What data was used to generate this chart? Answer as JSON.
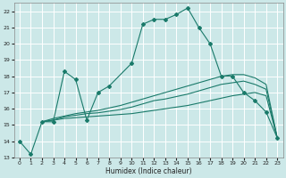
{
  "xlabel": "Humidex (Indice chaleur)",
  "bg_color": "#cce8e8",
  "grid_color": "#ffffff",
  "line_color": "#1a7a6a",
  "xlim": [
    -0.5,
    23.5
  ],
  "ylim": [
    13,
    22.5
  ],
  "xticks": [
    0,
    1,
    2,
    3,
    4,
    5,
    6,
    7,
    8,
    9,
    10,
    11,
    12,
    13,
    14,
    15,
    16,
    17,
    18,
    19,
    20,
    21,
    22,
    23
  ],
  "yticks": [
    13,
    14,
    15,
    16,
    17,
    18,
    19,
    20,
    21,
    22
  ],
  "line1_x": [
    0,
    1,
    2,
    3,
    4,
    5,
    6,
    7,
    8,
    10,
    11,
    12,
    13,
    14,
    15,
    16,
    17,
    18,
    19,
    20,
    21,
    22,
    23
  ],
  "line1_y": [
    14.0,
    13.2,
    15.2,
    15.2,
    18.3,
    17.8,
    15.3,
    17.0,
    17.4,
    18.8,
    21.2,
    21.5,
    21.5,
    21.8,
    22.2,
    21.0,
    20.0,
    18.0,
    18.0,
    17.0,
    16.5,
    15.8,
    14.2
  ],
  "line2_x": [
    2,
    3,
    4,
    5,
    6,
    7,
    8,
    9,
    10,
    11,
    12,
    13,
    14,
    15,
    16,
    17,
    18,
    19,
    20,
    21,
    22,
    23
  ],
  "line2_y": [
    15.2,
    15.3,
    15.4,
    15.45,
    15.5,
    15.55,
    15.6,
    15.65,
    15.7,
    15.8,
    15.9,
    16.0,
    16.1,
    16.2,
    16.35,
    16.5,
    16.65,
    16.8,
    16.9,
    17.0,
    16.8,
    14.2
  ],
  "line3_x": [
    2,
    3,
    4,
    5,
    6,
    7,
    8,
    9,
    10,
    11,
    12,
    13,
    14,
    15,
    16,
    17,
    18,
    19,
    20,
    21,
    22,
    23
  ],
  "line3_y": [
    15.2,
    15.3,
    15.5,
    15.6,
    15.7,
    15.75,
    15.85,
    15.95,
    16.1,
    16.3,
    16.5,
    16.6,
    16.75,
    16.9,
    17.1,
    17.3,
    17.5,
    17.6,
    17.7,
    17.5,
    17.2,
    14.2
  ],
  "line4_x": [
    2,
    3,
    4,
    5,
    6,
    7,
    8,
    9,
    10,
    11,
    12,
    13,
    14,
    15,
    16,
    17,
    18,
    19,
    20,
    21,
    22,
    23
  ],
  "line4_y": [
    15.2,
    15.4,
    15.55,
    15.7,
    15.8,
    15.9,
    16.05,
    16.2,
    16.4,
    16.6,
    16.8,
    17.0,
    17.2,
    17.4,
    17.6,
    17.8,
    18.0,
    18.1,
    18.1,
    17.9,
    17.5,
    14.2
  ]
}
